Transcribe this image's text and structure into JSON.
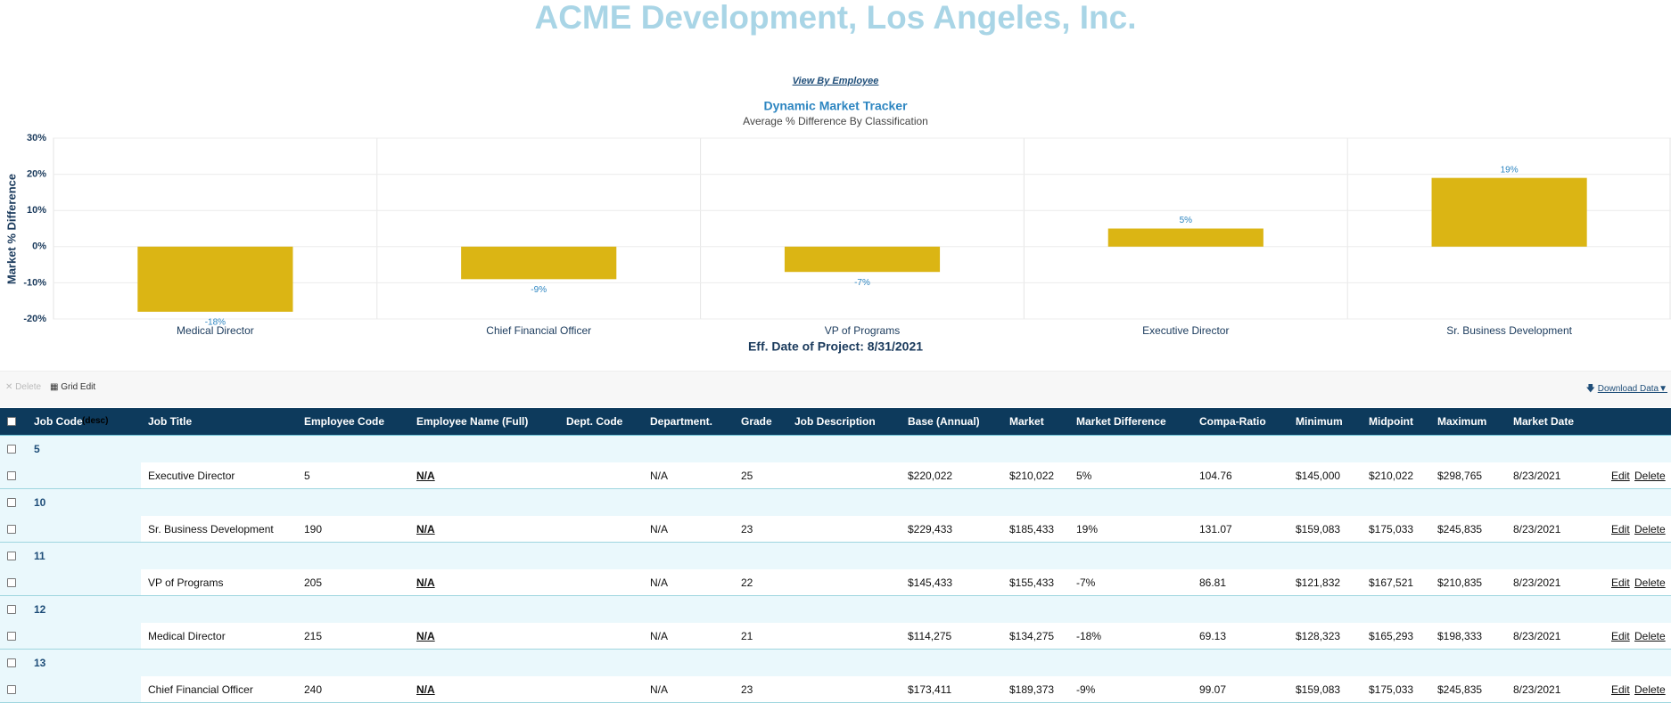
{
  "header": {
    "title": "ACME Development, Los Angeles, Inc.",
    "link": "View By Employee"
  },
  "chart_data": {
    "type": "bar",
    "title": "Dynamic Market Tracker",
    "subtitle": "Average % Difference By Classification",
    "y_label": "Market % Difference",
    "x_label": "Eff. Date of Project: 8/31/2021",
    "categories": [
      "Medical Director",
      "Chief Financial Officer",
      "VP of Programs",
      "Executive Director",
      "Sr. Business Development"
    ],
    "values": [
      -18,
      -9,
      -7,
      5,
      19
    ],
    "value_labels": [
      "-18%",
      "-9%",
      "-7%",
      "5%",
      "19%"
    ],
    "color": "#dbb514",
    "ylim": [
      -20,
      30
    ],
    "yticks": [
      {
        "value": -20,
        "label": "-20%"
      },
      {
        "value": -10,
        "label": "-10%"
      },
      {
        "value": 0,
        "label": "0%"
      },
      {
        "value": 10,
        "label": "10%"
      },
      {
        "value": 20,
        "label": "20%"
      },
      {
        "value": 30,
        "label": "30%"
      }
    ],
    "grid": true
  },
  "toolbar": {
    "delete": "Delete",
    "grid_edit": "Grid Edit",
    "download": "Download Data▼"
  },
  "table": {
    "columns": [
      "Job Code",
      "Job Title",
      "Employee Code",
      "Employee Name (Full)",
      "Dept. Code",
      "Department.",
      "Grade",
      "Job Description",
      "Base (Annual)",
      "Market",
      "Market Difference",
      "Compa-Ratio",
      "Minimum",
      "Midpoint",
      "Maximum",
      "Market Date"
    ],
    "sort_note": "(desc)",
    "row_actions": [
      "Edit",
      "Delete"
    ],
    "groups": [
      {
        "code": "5",
        "cells": [
          null,
          "Executive Director",
          "5",
          "N/A",
          null,
          "N/A",
          "25",
          null,
          "$220,022",
          "$210,022",
          "5%",
          "104.76",
          "$145,000",
          "$210,022",
          "$298,765",
          "8/23/2021"
        ]
      },
      {
        "code": "10",
        "cells": [
          null,
          "Sr. Business Development",
          "190",
          "N/A",
          null,
          "N/A",
          "23",
          null,
          "$229,433",
          "$185,433",
          "19%",
          "131.07",
          "$159,083",
          "$175,033",
          "$245,835",
          "8/23/2021"
        ]
      },
      {
        "code": "11",
        "cells": [
          null,
          "VP of Programs",
          "205",
          "N/A",
          null,
          "N/A",
          "22",
          null,
          "$145,433",
          "$155,433",
          "-7%",
          "86.81",
          "$121,832",
          "$167,521",
          "$210,835",
          "8/23/2021"
        ]
      },
      {
        "code": "12",
        "cells": [
          null,
          "Medical Director",
          "215",
          "N/A",
          null,
          "N/A",
          "21",
          null,
          "$114,275",
          "$134,275",
          "-18%",
          "69.13",
          "$128,323",
          "$165,293",
          "$198,333",
          "8/23/2021"
        ]
      },
      {
        "code": "13",
        "cells": [
          null,
          "Chief Financial Officer",
          "240",
          "N/A",
          null,
          "N/A",
          "23",
          null,
          "$173,411",
          "$189,373",
          "-9%",
          "99.07",
          "$159,083",
          "$175,033",
          "$245,835",
          "8/23/2021"
        ]
      }
    ]
  }
}
